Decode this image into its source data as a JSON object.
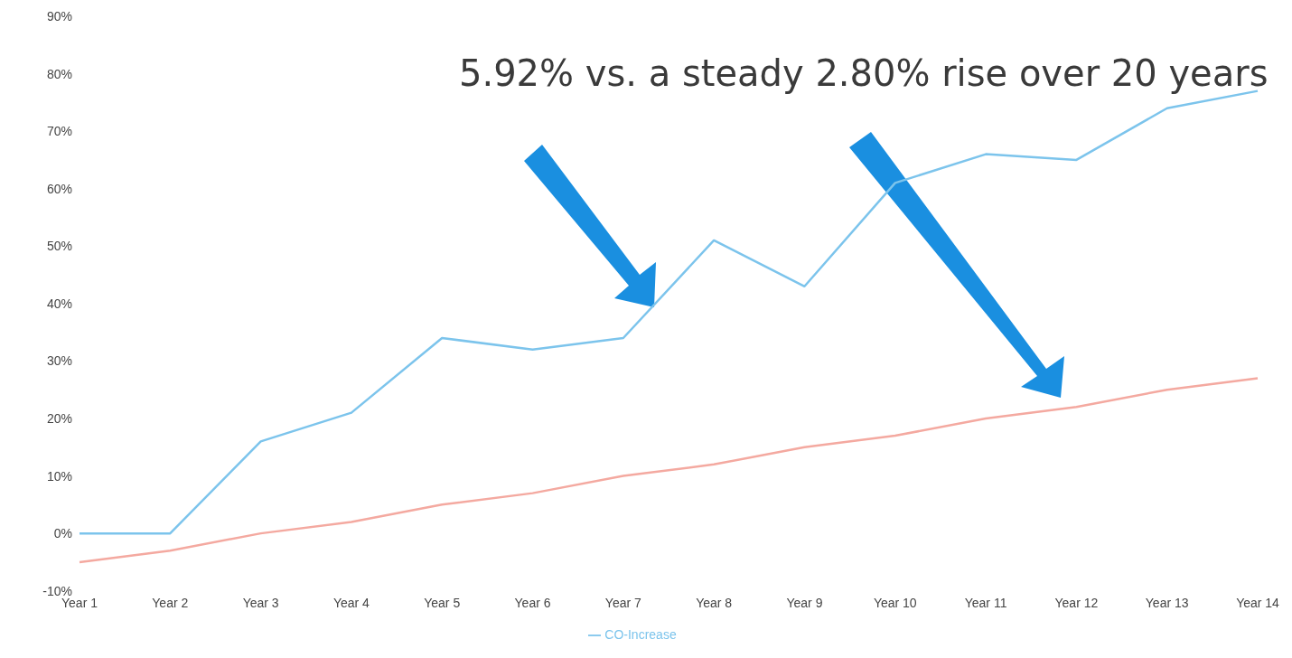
{
  "chart_data": {
    "type": "line",
    "annotations": [
      "5.92% vs. a steady 2.80% rise over 20 years"
    ],
    "categories": [
      "Year 1",
      "Year 2",
      "Year 3",
      "Year 4",
      "Year 5",
      "Year 6",
      "Year 7",
      "Year 8",
      "Year 9",
      "Year 10",
      "Year 11",
      "Year 12",
      "Year 13",
      "Year 14"
    ],
    "series": [
      {
        "name": "CO-Increase",
        "color": "#7cc4ec",
        "values": [
          0,
          0,
          16,
          21,
          34,
          32,
          34,
          51,
          43,
          61,
          66,
          65,
          74,
          77
        ]
      },
      {
        "color": "#f4a9a0",
        "values": [
          -5,
          -3,
          0,
          2,
          5,
          7,
          10,
          12,
          15,
          17,
          20,
          22,
          25,
          27
        ]
      }
    ],
    "ylim": [
      -10,
      90
    ],
    "yticks": [
      {
        "value": -10,
        "label": "-10%"
      },
      {
        "value": 0,
        "label": "0%"
      },
      {
        "value": 10,
        "label": "10%"
      },
      {
        "value": 20,
        "label": "20%"
      },
      {
        "value": 30,
        "label": "30%"
      },
      {
        "value": 40,
        "label": "40%"
      },
      {
        "value": 50,
        "label": "50%"
      },
      {
        "value": 60,
        "label": "60%"
      },
      {
        "value": 70,
        "label": "70%"
      },
      {
        "value": 80,
        "label": "80%"
      },
      {
        "value": 90,
        "label": "90%"
      }
    ],
    "grid": false,
    "legend": "bottom",
    "marker": "none",
    "line_style": "solid"
  }
}
